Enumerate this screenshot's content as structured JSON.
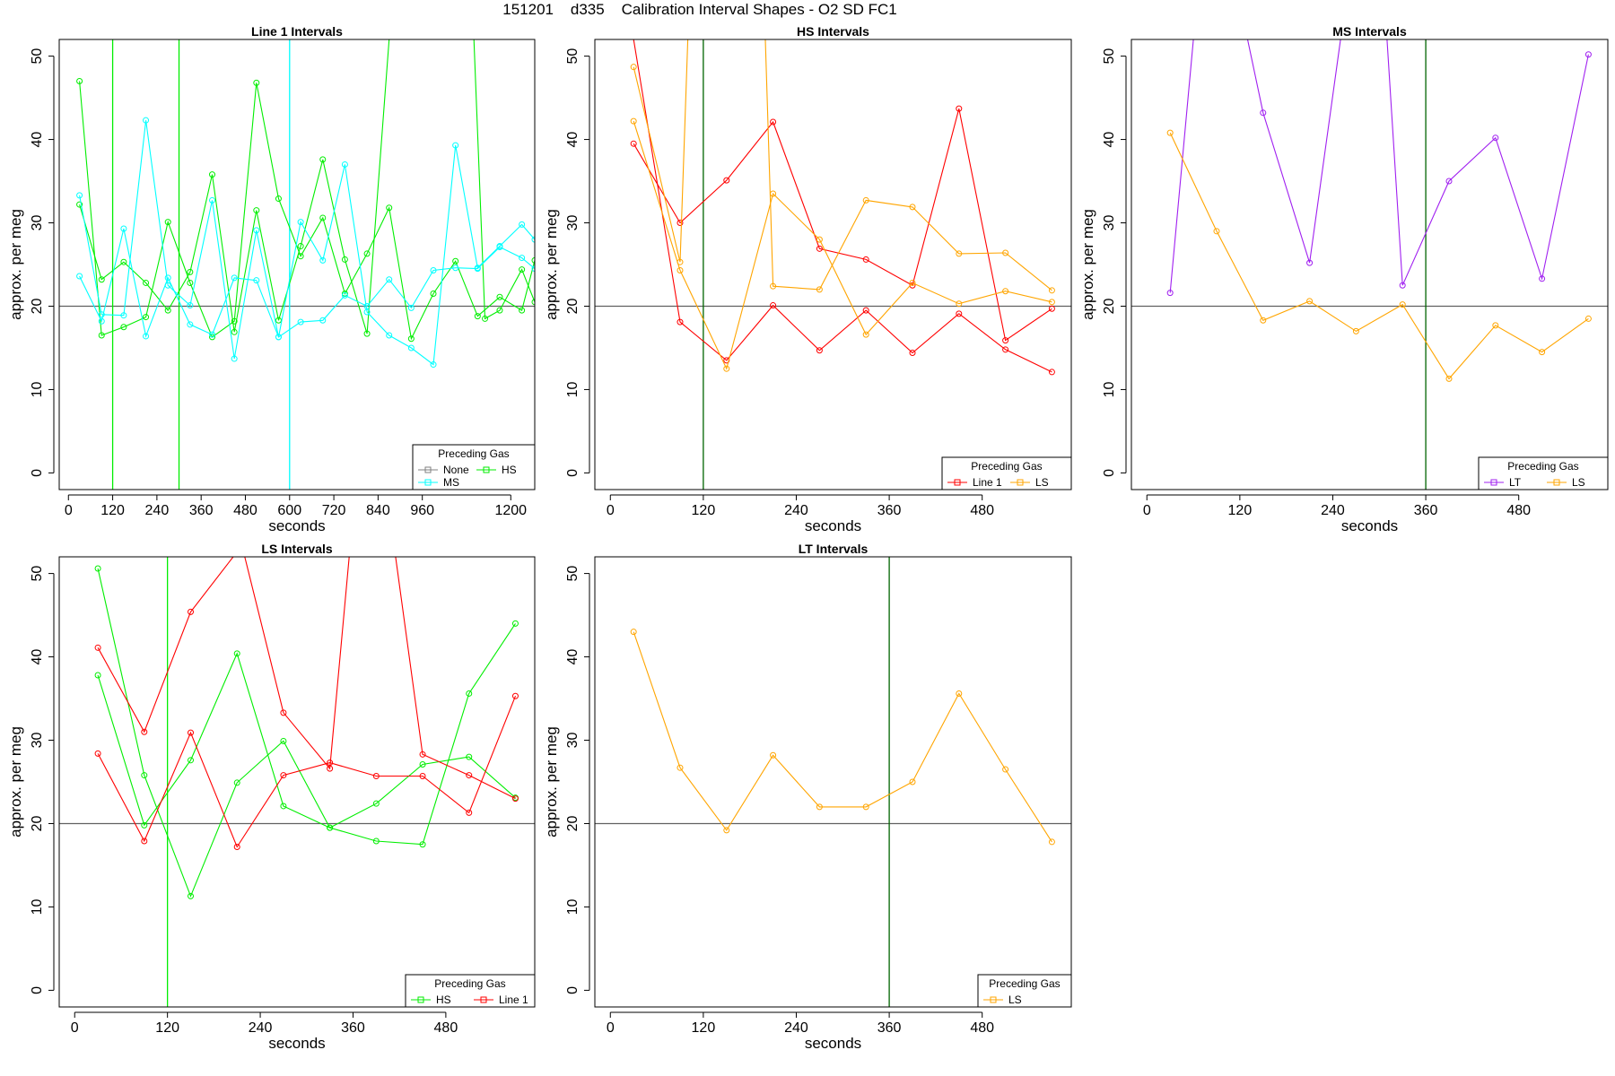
{
  "page": {
    "title": "151201    d335    Calibration Interval Shapes - O2 SD FC1"
  },
  "colors": {
    "Line 1": "#ff0000",
    "HS": "#00ee00",
    "MS": "#00ffff",
    "LS": "#ffa500",
    "LT": "#a020f0",
    "None": "#808080",
    "vline_green": "#006400",
    "vline_cyan": "#00ffff",
    "refline": "#606060"
  },
  "chart_data": [
    {
      "type": "line",
      "title": "Line 1 Intervals",
      "xlabel": "seconds",
      "ylabel": "approx. per meg",
      "xlim": [
        -25,
        1265
      ],
      "ylim": [
        -2,
        52
      ],
      "xticks": [
        0,
        120,
        240,
        360,
        480,
        600,
        720,
        840,
        960,
        1200
      ],
      "yticks": [
        0,
        10,
        20,
        30,
        40,
        50
      ],
      "hline": 20,
      "vlines": [
        {
          "x": 120,
          "color": "#00ee00"
        },
        {
          "x": 300,
          "color": "#00ee00"
        },
        {
          "x": 600,
          "color": "#00ffff"
        }
      ],
      "legend": {
        "title": "Preceding Gas",
        "position": "bottom-right",
        "entries": [
          "None",
          "HS",
          "MS"
        ]
      },
      "series": [
        {
          "name": "HS",
          "color": "#00ee00",
          "x": [
            30,
            90,
            150,
            210,
            270,
            330,
            390,
            450,
            510,
            570,
            630,
            690,
            750,
            810,
            870,
            930,
            990,
            1050,
            1110,
            1170,
            1230,
            1265
          ],
          "y": [
            47,
            16.5,
            17.5,
            18.7,
            30.1,
            22.8,
            16.3,
            18.2,
            46.8,
            32.9,
            26,
            30.6,
            21.5,
            26.3,
            31.8,
            16.1,
            21.5,
            25.4,
            18.8,
            21.1,
            19.5,
            25.5
          ]
        },
        {
          "name": "HS",
          "color": "#00ee00",
          "x": [
            30,
            90,
            150,
            210,
            270,
            330,
            390,
            450,
            510,
            570,
            630,
            690,
            750,
            810,
            870,
            930,
            990,
            1040,
            1060,
            1100,
            1130,
            1170,
            1230,
            1265
          ],
          "y": [
            32.2,
            23.2,
            25.3,
            22.8,
            19.5,
            24.1,
            35.8,
            16.9,
            31.5,
            18.3,
            27.2,
            37.6,
            25.6,
            16.7,
            52,
            52,
            52,
            52,
            52,
            52,
            18.5,
            19.5,
            24.4,
            20.5
          ]
        },
        {
          "name": "MS",
          "color": "#00ffff",
          "x": [
            30,
            90,
            150,
            210,
            270,
            330,
            390,
            450,
            510,
            570,
            630,
            690,
            750,
            810,
            870,
            930,
            990,
            1050,
            1110,
            1170,
            1230,
            1265
          ],
          "y": [
            33.3,
            19,
            18.9,
            42.3,
            22.5,
            20.1,
            32.7,
            13.7,
            29.1,
            16.3,
            30.1,
            25.5,
            37,
            19.3,
            16.5,
            15,
            13,
            39.3,
            24.6,
            27.2,
            29.8,
            28
          ]
        },
        {
          "name": "MS",
          "color": "#00ffff",
          "x": [
            30,
            90,
            150,
            210,
            270,
            330,
            390,
            450,
            510,
            570,
            630,
            690,
            750,
            810,
            870,
            930,
            990,
            1050,
            1110,
            1170,
            1230,
            1265
          ],
          "y": [
            23.6,
            18.2,
            29.3,
            16.4,
            23.4,
            17.8,
            16.6,
            23.4,
            23.1,
            16.3,
            18.1,
            18.3,
            21.3,
            20,
            23.2,
            19.8,
            24.3,
            24.6,
            24.5,
            27.1,
            25.8,
            24.5
          ]
        }
      ]
    },
    {
      "type": "line",
      "title": "HS Intervals",
      "xlabel": "seconds",
      "ylabel": "approx. per meg",
      "xlim": [
        -20,
        595
      ],
      "ylim": [
        -2,
        52
      ],
      "xticks": [
        0,
        120,
        240,
        360,
        480
      ],
      "yticks": [
        0,
        10,
        20,
        30,
        40,
        50
      ],
      "hline": 20,
      "vlines": [
        {
          "x": 120,
          "color": "#006400"
        }
      ],
      "legend": {
        "title": "Preceding Gas",
        "position": "bottom-right",
        "entries": [
          "Line 1",
          "LS"
        ]
      },
      "series": [
        {
          "name": "Line 1",
          "color": "#ff0000",
          "x": [
            30,
            90,
            150,
            210,
            270,
            330,
            390,
            450,
            510,
            570
          ],
          "y": [
            52,
            18.1,
            13.5,
            20.1,
            14.7,
            19.5,
            14.4,
            19.1,
            14.8,
            12.1
          ]
        },
        {
          "name": "Line 1",
          "color": "#ff0000",
          "x": [
            30,
            90,
            150,
            210,
            270,
            330,
            390,
            450,
            510,
            570
          ],
          "y": [
            39.5,
            30,
            35.1,
            42.1,
            26.9,
            25.6,
            22.5,
            43.7,
            15.9,
            19.7
          ]
        },
        {
          "name": "LS",
          "color": "#ffa500",
          "x": [
            30,
            90,
            100,
            150,
            200,
            210,
            270,
            330,
            390,
            450,
            510,
            570
          ],
          "y": [
            48.7,
            25.3,
            52,
            52,
            52,
            22.4,
            22,
            32.7,
            31.9,
            26.3,
            26.4,
            21.9
          ]
        },
        {
          "name": "LS",
          "color": "#ffa500",
          "x": [
            30,
            90,
            150,
            210,
            270,
            330,
            390,
            450,
            510,
            570
          ],
          "y": [
            42.2,
            24.3,
            12.5,
            33.5,
            28,
            16.6,
            22.8,
            20.3,
            21.8,
            20.5
          ]
        }
      ]
    },
    {
      "type": "line",
      "title": "MS Intervals",
      "xlabel": "seconds",
      "ylabel": "approx. per meg",
      "xlim": [
        -20,
        595
      ],
      "ylim": [
        -2,
        52
      ],
      "xticks": [
        0,
        120,
        240,
        360,
        480
      ],
      "yticks": [
        0,
        10,
        20,
        30,
        40,
        50
      ],
      "hline": 20,
      "vlines": [
        {
          "x": 360,
          "color": "#006400"
        }
      ],
      "legend": {
        "title": "Preceding Gas",
        "position": "bottom-right",
        "entries": [
          "LT",
          "LS"
        ]
      },
      "series": [
        {
          "name": "LT",
          "color": "#a020f0",
          "x": [
            30,
            60,
            130,
            150,
            210,
            250,
            310,
            330,
            390,
            450,
            510,
            570
          ],
          "y": [
            21.6,
            52,
            52,
            43.2,
            25.2,
            52,
            52,
            22.5,
            35,
            40.2,
            23.3,
            50.2
          ]
        },
        {
          "name": "LS",
          "color": "#ffa500",
          "x": [
            30,
            90,
            150,
            210,
            270,
            330,
            390,
            450,
            510,
            570
          ],
          "y": [
            40.8,
            29,
            18.3,
            20.6,
            17,
            20.2,
            11.3,
            17.7,
            14.5,
            18.5
          ]
        }
      ]
    },
    {
      "type": "line",
      "title": "LS Intervals",
      "xlabel": "seconds",
      "ylabel": "approx. per meg",
      "xlim": [
        -20,
        595
      ],
      "ylim": [
        -2,
        52
      ],
      "xticks": [
        0,
        120,
        240,
        360,
        480
      ],
      "yticks": [
        0,
        10,
        20,
        30,
        40,
        50
      ],
      "hline": 20,
      "vlines": [
        {
          "x": 120,
          "color": "#00ee00"
        }
      ],
      "legend": {
        "title": "Preceding Gas",
        "position": "bottom-right",
        "entries": [
          "HS",
          "Line 1"
        ]
      },
      "series": [
        {
          "name": "HS",
          "color": "#00ee00",
          "x": [
            30,
            90,
            150,
            210,
            270,
            330,
            390,
            450,
            510,
            570
          ],
          "y": [
            50.6,
            25.8,
            11.3,
            24.9,
            29.9,
            19.5,
            22.4,
            27.1,
            28,
            23.1
          ]
        },
        {
          "name": "HS",
          "color": "#00ee00",
          "x": [
            30,
            90,
            150,
            210,
            270,
            330,
            390,
            450,
            510,
            570
          ],
          "y": [
            37.8,
            19.8,
            27.6,
            40.4,
            22.1,
            19.5,
            17.9,
            17.5,
            35.6,
            44
          ]
        },
        {
          "name": "Line 1",
          "color": "#ff0000",
          "x": [
            30,
            90,
            150,
            205,
            220,
            270,
            330,
            355,
            375,
            415,
            450,
            510,
            570
          ],
          "y": [
            41.1,
            31,
            45.4,
            52,
            52,
            33.3,
            26.6,
            52,
            52,
            52,
            28.3,
            25.8,
            23
          ]
        },
        {
          "name": "Line 1",
          "color": "#ff0000",
          "x": [
            30,
            90,
            150,
            210,
            270,
            330,
            390,
            450,
            510,
            570
          ],
          "y": [
            28.4,
            17.9,
            30.9,
            17.2,
            25.8,
            27.3,
            25.7,
            25.7,
            21.3,
            35.3
          ]
        }
      ]
    },
    {
      "type": "line",
      "title": "LT Intervals",
      "xlabel": "seconds",
      "ylabel": "approx. per meg",
      "xlim": [
        -20,
        595
      ],
      "ylim": [
        -2,
        52
      ],
      "xticks": [
        0,
        120,
        240,
        360,
        480
      ],
      "yticks": [
        0,
        10,
        20,
        30,
        40,
        50
      ],
      "hline": 20,
      "vlines": [
        {
          "x": 360,
          "color": "#006400"
        }
      ],
      "legend": {
        "title": "Preceding Gas",
        "position": "bottom-right",
        "entries": [
          "LS"
        ]
      },
      "series": [
        {
          "name": "LS",
          "color": "#ffa500",
          "x": [
            30,
            90,
            150,
            210,
            270,
            330,
            390,
            450,
            510,
            570
          ],
          "y": [
            43,
            26.7,
            19.2,
            28.2,
            22,
            22,
            25,
            35.6,
            26.5,
            17.8
          ]
        }
      ]
    }
  ]
}
